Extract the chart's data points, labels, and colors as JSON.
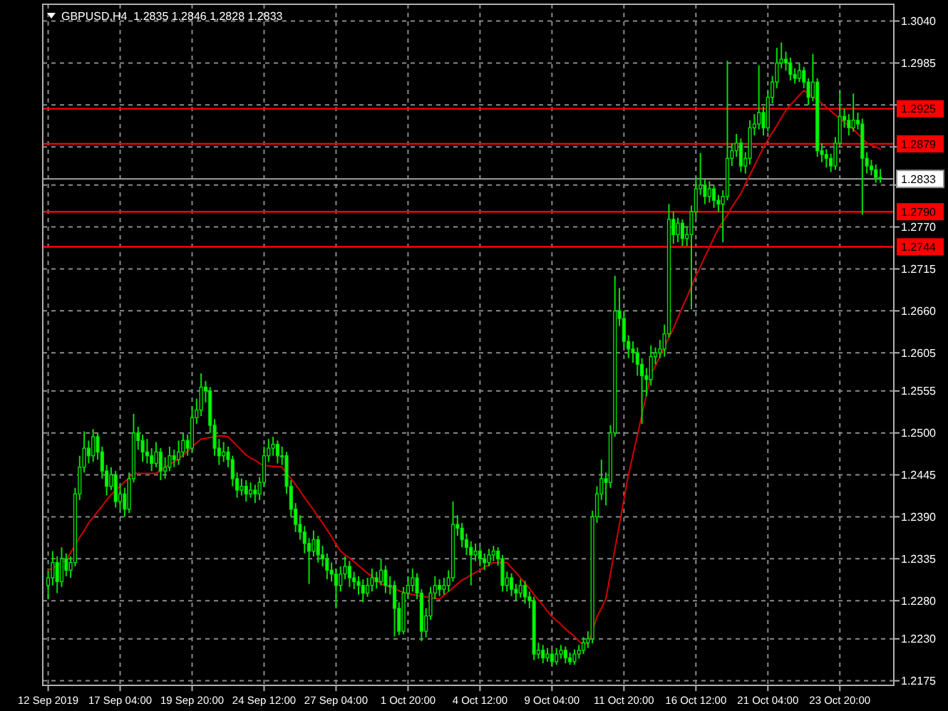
{
  "chart_data": {
    "type": "candlestick",
    "title": "GBPUSD,H4  1.2835 1.2846 1.2828 1.2833",
    "color": "#00e000",
    "categories": [
      "12 Sep 2019",
      null,
      null,
      null,
      null,
      null,
      null,
      null,
      null,
      null,
      null,
      null,
      null,
      null,
      null,
      null,
      "17 Sep 04:00",
      null,
      null,
      null,
      null,
      null,
      null,
      null,
      null,
      null,
      null,
      null,
      null,
      null,
      null,
      null,
      "19 Sep 20:00",
      null,
      null,
      null,
      null,
      null,
      null,
      null,
      null,
      null,
      null,
      null,
      null,
      null,
      null,
      null,
      "24 Sep 12:00",
      null,
      null,
      null,
      null,
      null,
      null,
      null,
      null,
      null,
      null,
      null,
      null,
      null,
      null,
      null,
      "27 Sep 04:00",
      null,
      null,
      null,
      null,
      null,
      null,
      null,
      null,
      null,
      null,
      null,
      null,
      null,
      null,
      null,
      "1 Oct 20:00",
      null,
      null,
      null,
      null,
      null,
      null,
      null,
      null,
      null,
      null,
      null,
      null,
      null,
      null,
      null,
      "4 Oct 12:00",
      null,
      null,
      null,
      null,
      null,
      null,
      null,
      null,
      null,
      null,
      null,
      null,
      null,
      null,
      null,
      "9 Oct 04:00",
      null,
      null,
      null,
      null,
      null,
      null,
      null,
      null,
      null,
      null,
      null,
      null,
      null,
      null,
      null,
      "11 Oct 20:00",
      null,
      null,
      null,
      null,
      null,
      null,
      null,
      null,
      null,
      null,
      null,
      null,
      null,
      null,
      null,
      "16 Oct 12:00",
      null,
      null,
      null,
      null,
      null,
      null,
      null,
      null,
      null,
      null,
      null,
      null,
      null,
      null,
      null,
      "21 Oct 04:00",
      null,
      null,
      null,
      null,
      null,
      null,
      null,
      null,
      null,
      null,
      null,
      null,
      null,
      null,
      null,
      "23 Oct 20:00",
      null,
      null,
      null,
      null,
      null,
      null,
      null,
      null,
      null
    ],
    "ohlc": [
      [
        1.23,
        1.2318,
        1.2282,
        1.231
      ],
      [
        1.231,
        1.2345,
        1.23,
        1.233
      ],
      [
        1.233,
        1.2338,
        1.229,
        1.2305
      ],
      [
        1.2305,
        1.235,
        1.2298,
        1.2335
      ],
      [
        1.2335,
        1.2342,
        1.2312,
        1.232
      ],
      [
        1.232,
        1.2338,
        1.231,
        1.233
      ],
      [
        1.233,
        1.2428,
        1.2325,
        1.242
      ],
      [
        1.242,
        1.247,
        1.2412,
        1.2455
      ],
      [
        1.2455,
        1.2502,
        1.2448,
        1.248
      ],
      [
        1.248,
        1.249,
        1.246,
        1.247
      ],
      [
        1.247,
        1.2505,
        1.2462,
        1.2495
      ],
      [
        1.2495,
        1.25,
        1.2465,
        1.2475
      ],
      [
        1.2475,
        1.2482,
        1.244,
        1.245
      ],
      [
        1.245,
        1.2458,
        1.2418,
        1.243
      ],
      [
        1.243,
        1.2455,
        1.2425,
        1.2445
      ],
      [
        1.2445,
        1.245,
        1.2402,
        1.241
      ],
      [
        1.241,
        1.2432,
        1.24,
        1.242
      ],
      [
        1.242,
        1.2428,
        1.239,
        1.24
      ],
      [
        1.24,
        1.2448,
        1.2395,
        1.244
      ],
      [
        1.244,
        1.2525,
        1.2435,
        1.25
      ],
      [
        1.25,
        1.2508,
        1.2478,
        1.249
      ],
      [
        1.249,
        1.2498,
        1.2462,
        1.2475
      ],
      [
        1.2475,
        1.2492,
        1.246,
        1.247
      ],
      [
        1.247,
        1.248,
        1.245,
        1.246
      ],
      [
        1.246,
        1.2488,
        1.2455,
        1.2475
      ],
      [
        1.2475,
        1.248,
        1.2438,
        1.245
      ],
      [
        1.245,
        1.2468,
        1.244,
        1.2455
      ],
      [
        1.2455,
        1.2482,
        1.245,
        1.247
      ],
      [
        1.247,
        1.2478,
        1.2455,
        1.2465
      ],
      [
        1.2465,
        1.249,
        1.2458,
        1.2475
      ],
      [
        1.2475,
        1.25,
        1.2468,
        1.249
      ],
      [
        1.249,
        1.2498,
        1.247,
        1.248
      ],
      [
        1.248,
        1.2535,
        1.2475,
        1.252
      ],
      [
        1.252,
        1.2545,
        1.2512,
        1.253
      ],
      [
        1.253,
        1.2578,
        1.2522,
        1.256
      ],
      [
        1.256,
        1.2568,
        1.254,
        1.2555
      ],
      [
        1.2555,
        1.256,
        1.25,
        1.251
      ],
      [
        1.251,
        1.2518,
        1.247,
        1.248
      ],
      [
        1.248,
        1.2492,
        1.2458,
        1.247
      ],
      [
        1.247,
        1.2488,
        1.2462,
        1.2475
      ],
      [
        1.2475,
        1.2482,
        1.2455,
        1.2465
      ],
      [
        1.2465,
        1.247,
        1.243,
        1.244
      ],
      [
        1.244,
        1.2448,
        1.2415,
        1.2425
      ],
      [
        1.2425,
        1.244,
        1.2418,
        1.243
      ],
      [
        1.243,
        1.2438,
        1.241,
        1.242
      ],
      [
        1.242,
        1.2435,
        1.2415,
        1.2425
      ],
      [
        1.2425,
        1.2432,
        1.2408,
        1.242
      ],
      [
        1.242,
        1.2442,
        1.2412,
        1.2435
      ],
      [
        1.2435,
        1.2482,
        1.243,
        1.247
      ],
      [
        1.247,
        1.2492,
        1.2462,
        1.248
      ],
      [
        1.248,
        1.2495,
        1.247,
        1.2485
      ],
      [
        1.2485,
        1.249,
        1.246,
        1.247
      ],
      [
        1.247,
        1.2482,
        1.2458,
        1.247
      ],
      [
        1.247,
        1.2475,
        1.242,
        1.243
      ],
      [
        1.243,
        1.2438,
        1.239,
        1.24
      ],
      [
        1.24,
        1.2408,
        1.237,
        1.238
      ],
      [
        1.238,
        1.2392,
        1.236,
        1.237
      ],
      [
        1.237,
        1.2378,
        1.2342,
        1.2355
      ],
      [
        1.2355,
        1.2362,
        1.2302,
        1.2345
      ],
      [
        1.2345,
        1.2372,
        1.2338,
        1.236
      ],
      [
        1.236,
        1.2365,
        1.233,
        1.234
      ],
      [
        1.234,
        1.2352,
        1.2325,
        1.2335
      ],
      [
        1.2335,
        1.2342,
        1.2308,
        1.232
      ],
      [
        1.232,
        1.233,
        1.2305,
        1.2315
      ],
      [
        1.2315,
        1.2322,
        1.227,
        1.23
      ],
      [
        1.23,
        1.2325,
        1.2292,
        1.2315
      ],
      [
        1.2315,
        1.2338,
        1.2308,
        1.2325
      ],
      [
        1.2325,
        1.2332,
        1.2298,
        1.231
      ],
      [
        1.231,
        1.2318,
        1.2295,
        1.2305
      ],
      [
        1.2305,
        1.2312,
        1.2288,
        1.23
      ],
      [
        1.23,
        1.2308,
        1.2278,
        1.229
      ],
      [
        1.229,
        1.231,
        1.2285,
        1.23
      ],
      [
        1.23,
        1.2322,
        1.2292,
        1.231
      ],
      [
        1.231,
        1.2318,
        1.2296,
        1.2305
      ],
      [
        1.2305,
        1.2335,
        1.23,
        1.232
      ],
      [
        1.232,
        1.2326,
        1.229,
        1.23
      ],
      [
        1.23,
        1.2312,
        1.2288,
        1.23
      ],
      [
        1.23,
        1.2306,
        1.2233,
        1.227
      ],
      [
        1.227,
        1.2278,
        1.2235,
        1.224
      ],
      [
        1.224,
        1.2298,
        1.2236,
        1.229
      ],
      [
        1.229,
        1.2312,
        1.2282,
        1.23
      ],
      [
        1.23,
        1.2322,
        1.2292,
        1.231
      ],
      [
        1.231,
        1.2316,
        1.2282,
        1.229
      ],
      [
        1.229,
        1.2295,
        1.2227,
        1.224
      ],
      [
        1.224,
        1.227,
        1.2232,
        1.226
      ],
      [
        1.226,
        1.2298,
        1.2255,
        1.229
      ],
      [
        1.229,
        1.2312,
        1.2282,
        1.23
      ],
      [
        1.23,
        1.2308,
        1.2286,
        1.2295
      ],
      [
        1.2295,
        1.231,
        1.2288,
        1.23
      ],
      [
        1.23,
        1.232,
        1.2292,
        1.231
      ],
      [
        1.231,
        1.241,
        1.2305,
        1.238
      ],
      [
        1.238,
        1.2392,
        1.2365,
        1.2375
      ],
      [
        1.2375,
        1.2382,
        1.235,
        1.236
      ],
      [
        1.236,
        1.2368,
        1.234,
        1.235
      ],
      [
        1.235,
        1.2358,
        1.23,
        1.234
      ],
      [
        1.234,
        1.2355,
        1.2332,
        1.2345
      ],
      [
        1.2345,
        1.235,
        1.2325,
        1.2335
      ],
      [
        1.2335,
        1.2342,
        1.232,
        1.233
      ],
      [
        1.233,
        1.2348,
        1.2325,
        1.234
      ],
      [
        1.234,
        1.2352,
        1.2332,
        1.2345
      ],
      [
        1.2345,
        1.235,
        1.2326,
        1.2335
      ],
      [
        1.2335,
        1.234,
        1.2292,
        1.23
      ],
      [
        1.23,
        1.2318,
        1.2292,
        1.231
      ],
      [
        1.231,
        1.2316,
        1.2286,
        1.2295
      ],
      [
        1.2295,
        1.2302,
        1.228,
        1.229
      ],
      [
        1.229,
        1.2308,
        1.2284,
        1.23
      ],
      [
        1.23,
        1.2306,
        1.2276,
        1.2285
      ],
      [
        1.2285,
        1.2292,
        1.227,
        1.228
      ],
      [
        1.228,
        1.2285,
        1.2202,
        1.221
      ],
      [
        1.221,
        1.2225,
        1.2204,
        1.2215
      ],
      [
        1.2215,
        1.2222,
        1.2198,
        1.2205
      ],
      [
        1.2205,
        1.2218,
        1.22,
        1.221
      ],
      [
        1.221,
        1.2216,
        1.2195,
        1.22
      ],
      [
        1.22,
        1.2218,
        1.2196,
        1.221
      ],
      [
        1.221,
        1.2222,
        1.2204,
        1.2215
      ],
      [
        1.2215,
        1.222,
        1.2198,
        1.2205
      ],
      [
        1.2205,
        1.2212,
        1.2196,
        1.22
      ],
      [
        1.22,
        1.2216,
        1.2196,
        1.221
      ],
      [
        1.221,
        1.2222,
        1.2204,
        1.2215
      ],
      [
        1.2215,
        1.2232,
        1.221,
        1.2225
      ],
      [
        1.2225,
        1.224,
        1.2218,
        1.223
      ],
      [
        1.223,
        1.2398,
        1.2224,
        1.239
      ],
      [
        1.239,
        1.243,
        1.2382,
        1.242
      ],
      [
        1.242,
        1.2465,
        1.2412,
        1.244
      ],
      [
        1.244,
        1.2448,
        1.2405,
        1.2435
      ],
      [
        1.2435,
        1.251,
        1.2428,
        1.25
      ],
      [
        1.25,
        1.2706,
        1.2495,
        1.266
      ],
      [
        1.266,
        1.269,
        1.264,
        1.265
      ],
      [
        1.265,
        1.266,
        1.2612,
        1.262
      ],
      [
        1.262,
        1.2628,
        1.2598,
        1.261
      ],
      [
        1.261,
        1.262,
        1.2592,
        1.2605
      ],
      [
        1.2605,
        1.2612,
        1.2575,
        1.259
      ],
      [
        1.259,
        1.2598,
        1.2512,
        1.2575
      ],
      [
        1.2575,
        1.2585,
        1.2548,
        1.257
      ],
      [
        1.257,
        1.2615,
        1.2562,
        1.26
      ],
      [
        1.26,
        1.2612,
        1.259,
        1.2605
      ],
      [
        1.2605,
        1.2622,
        1.2598,
        1.261
      ],
      [
        1.261,
        1.2642,
        1.26,
        1.263
      ],
      [
        1.263,
        1.28,
        1.2625,
        1.278
      ],
      [
        1.278,
        1.279,
        1.2748,
        1.276
      ],
      [
        1.276,
        1.2782,
        1.275,
        1.2775
      ],
      [
        1.2775,
        1.278,
        1.2745,
        1.2755
      ],
      [
        1.2755,
        1.277,
        1.2745,
        1.276
      ],
      [
        1.276,
        1.2798,
        1.2662,
        1.279
      ],
      [
        1.279,
        1.2835,
        1.2782,
        1.282
      ],
      [
        1.282,
        1.2867,
        1.2812,
        1.2825
      ],
      [
        1.2825,
        1.2832,
        1.28,
        1.281
      ],
      [
        1.281,
        1.283,
        1.2802,
        1.282
      ],
      [
        1.282,
        1.2825,
        1.2795,
        1.2805
      ],
      [
        1.2805,
        1.2812,
        1.279,
        1.28
      ],
      [
        1.28,
        1.2818,
        1.275,
        1.281
      ],
      [
        1.281,
        1.2988,
        1.2805,
        1.286
      ],
      [
        1.286,
        1.288,
        1.285,
        1.287
      ],
      [
        1.287,
        1.2892,
        1.2862,
        1.288
      ],
      [
        1.288,
        1.2886,
        1.2842,
        1.285
      ],
      [
        1.285,
        1.2868,
        1.284,
        1.286
      ],
      [
        1.286,
        1.291,
        1.2852,
        1.29
      ],
      [
        1.29,
        1.2918,
        1.289,
        1.2905
      ],
      [
        1.2905,
        1.2982,
        1.2898,
        1.292
      ],
      [
        1.292,
        1.2928,
        1.289,
        1.29
      ],
      [
        1.29,
        1.2948,
        1.2895,
        1.294
      ],
      [
        1.294,
        1.2968,
        1.2932,
        1.296
      ],
      [
        1.296,
        1.3005,
        1.2952,
        1.2985
      ],
      [
        1.2985,
        1.3012,
        1.2978,
        1.299
      ],
      [
        1.299,
        1.3,
        1.2975,
        1.2985
      ],
      [
        1.2985,
        1.2992,
        1.2962,
        1.297
      ],
      [
        1.297,
        1.2978,
        1.2958,
        1.2965
      ],
      [
        1.2965,
        1.2985,
        1.296,
        1.2975
      ],
      [
        1.2975,
        1.298,
        1.2952,
        1.296
      ],
      [
        1.296,
        1.2965,
        1.293,
        1.294
      ],
      [
        1.294,
        1.2997,
        1.2935,
        1.296
      ],
      [
        1.296,
        1.2965,
        1.2862,
        1.287
      ],
      [
        1.287,
        1.288,
        1.2855,
        1.2865
      ],
      [
        1.2865,
        1.2872,
        1.2848,
        1.286
      ],
      [
        1.286,
        1.2866,
        1.2842,
        1.285
      ],
      [
        1.285,
        1.2888,
        1.2845,
        1.288
      ],
      [
        1.288,
        1.2949,
        1.2875,
        1.2915
      ],
      [
        1.2915,
        1.2925,
        1.29,
        1.291
      ],
      [
        1.291,
        1.2918,
        1.289,
        1.29
      ],
      [
        1.29,
        1.2945,
        1.2895,
        1.291
      ],
      [
        1.291,
        1.292,
        1.2898,
        1.2905
      ],
      [
        1.2905,
        1.2912,
        1.2786,
        1.286
      ],
      [
        1.286,
        1.2868,
        1.284,
        1.285
      ],
      [
        1.285,
        1.2858,
        1.2838,
        1.2845
      ],
      [
        1.2845,
        1.2852,
        1.2828,
        1.2835
      ],
      [
        1.2835,
        1.2846,
        1.2828,
        1.2833
      ]
    ],
    "series": [
      {
        "type": "line",
        "color": "#d40000",
        "values": [
          1.232,
          1.2323,
          1.2326,
          1.233,
          1.2333,
          1.2343,
          1.2353,
          1.2363,
          1.2372,
          1.2382,
          1.2389,
          1.2397,
          1.2404,
          1.2412,
          1.2419,
          1.2425,
          1.243,
          1.2436,
          1.2441,
          1.2447,
          1.2447,
          1.2447,
          1.2447,
          1.2447,
          1.2447,
          1.2451,
          1.2455,
          1.2459,
          1.2462,
          1.2466,
          1.2471,
          1.2476,
          1.2482,
          1.2487,
          1.2492,
          1.2493,
          1.2494,
          1.2495,
          1.2496,
          1.2496,
          1.2495,
          1.2489,
          1.2483,
          1.2477,
          1.2471,
          1.2467,
          1.2464,
          1.246,
          1.2457,
          1.2457,
          1.2456,
          1.2456,
          1.2455,
          1.2447,
          1.244,
          1.2432,
          1.2424,
          1.2415,
          1.2407,
          1.2399,
          1.239,
          1.2382,
          1.2373,
          1.2364,
          1.2354,
          1.2345,
          1.234,
          1.2336,
          1.2331,
          1.2326,
          1.2321,
          1.2316,
          1.2312,
          1.2307,
          1.2302,
          1.23,
          1.2298,
          1.2296,
          1.2293,
          1.2291,
          1.2289,
          1.2288,
          1.2287,
          1.2286,
          1.2285,
          1.2284,
          1.2283,
          1.2282,
          1.2287,
          1.2292,
          1.2297,
          1.2302,
          1.2307,
          1.231,
          1.2314,
          1.2317,
          1.232,
          1.2324,
          1.2327,
          1.233,
          1.233,
          1.233,
          1.233,
          1.2323,
          1.2317,
          1.231,
          1.2303,
          1.2296,
          1.2288,
          1.2281,
          1.2274,
          1.2266,
          1.2259,
          1.2254,
          1.2249,
          1.2243,
          1.2238,
          1.2233,
          1.2227,
          1.2222,
          1.2225,
          1.224,
          1.2259,
          1.227,
          1.2283,
          1.2315,
          1.2348,
          1.238,
          1.2413,
          1.2445,
          1.2471,
          1.2497,
          1.2524,
          1.255,
          1.2576,
          1.2588,
          1.26,
          1.2613,
          1.2625,
          1.2637,
          1.2651,
          1.2665,
          1.2678,
          1.2692,
          1.2706,
          1.2718,
          1.2731,
          1.2743,
          1.2756,
          1.2768,
          1.2777,
          1.2786,
          1.2796,
          1.2805,
          1.2814,
          1.2826,
          1.2838,
          1.285,
          1.2862,
          1.2874,
          1.2884,
          1.2894,
          1.2903,
          1.2913,
          1.2923,
          1.293,
          1.2936,
          1.2943,
          1.2949,
          1.2945,
          1.2941,
          1.2937,
          1.2932,
          1.2927,
          1.2922,
          1.2917,
          1.2912,
          1.2907,
          1.2903,
          1.2898,
          1.2892,
          1.2886,
          1.288,
          1.2877,
          1.2875,
          1.2872
        ]
      }
    ],
    "ylim": [
      1.2169,
      1.3062
    ],
    "yticks": [
      {
        "value": 1.304,
        "label": "1.3040"
      },
      1.2985,
      {
        "value": 1.293,
        "label": null
      },
      {
        "value": 1.2875,
        "label": null
      },
      {
        "value": 1.2825,
        "label": null
      },
      {
        "value": 1.277,
        "label": "1.2770"
      },
      1.2715,
      {
        "value": 1.266,
        "label": "1.2660"
      },
      1.2605,
      1.2555,
      {
        "value": 1.25,
        "label": "1.2500"
      },
      1.2445,
      {
        "value": 1.239,
        "label": "1.2390"
      },
      1.2335,
      {
        "value": 1.228,
        "label": "1.2280"
      },
      {
        "value": 1.223,
        "label": "1.2230"
      },
      1.2175
    ],
    "grid": true,
    "ref_lines": [
      {
        "axis": "y",
        "value": 1.2925,
        "label": "1.2925",
        "color": "#ff0000"
      },
      {
        "axis": "y",
        "value": 1.2879,
        "label": "1.2879",
        "color": "#ff0000"
      },
      {
        "axis": "y",
        "value": 1.279,
        "label": "1.2790",
        "color": "#ff0000"
      },
      {
        "axis": "y",
        "value": 1.2744,
        "label": "1.2744",
        "color": "#ff0000"
      },
      {
        "axis": "y",
        "value": 1.2833,
        "label": "1.2833",
        "color": "#909090"
      }
    ]
  }
}
